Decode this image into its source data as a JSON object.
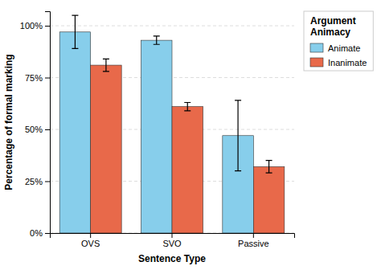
{
  "chart_data": {
    "type": "bar",
    "categories": [
      "OVS",
      "SVO",
      "Passive"
    ],
    "series": [
      {
        "name": "Animate",
        "color": "#87CEEB",
        "values": [
          0.97,
          0.93,
          0.47
        ],
        "errors": [
          0.08,
          0.02,
          0.17
        ]
      },
      {
        "name": "Inanimate",
        "color": "#E8694A",
        "values": [
          0.81,
          0.61,
          0.32
        ],
        "errors": [
          0.03,
          0.02,
          0.03
        ]
      }
    ],
    "xlabel": "Sentence Type",
    "ylabel": "Percentage of formal marking",
    "legend_title": "Argument\nAnimacy",
    "ylim": [
      0,
      1.07
    ],
    "yticks": [
      {
        "value": 0.0,
        "label": "0%"
      },
      {
        "value": 0.25,
        "label": "25%"
      },
      {
        "value": 0.5,
        "label": "50%"
      },
      {
        "value": 0.75,
        "label": "75%"
      },
      {
        "value": 1.0,
        "label": "100%"
      }
    ],
    "grid": true,
    "legend": "upper right"
  }
}
